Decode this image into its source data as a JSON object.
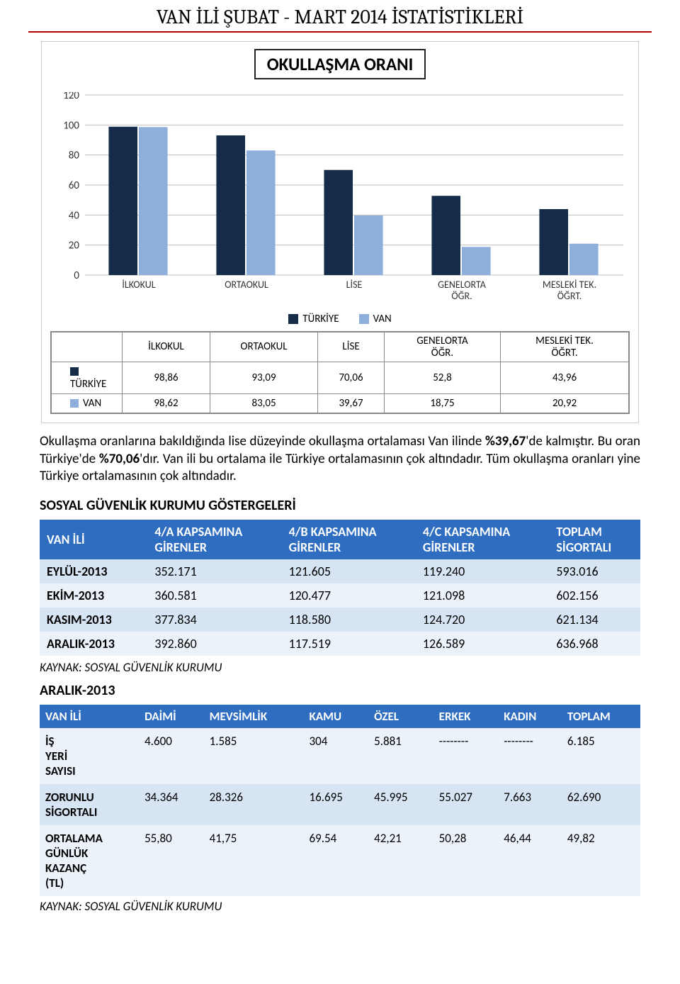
{
  "page_title": "VAN İLİ ŞUBAT - MART 2014 İSTATİSTİKLERİ",
  "chart": {
    "type": "bar",
    "title": "OKULLAŞMA ORANI",
    "title_fontsize": 25,
    "categories": [
      "İLKOKUL",
      "ORTAOKUL",
      "LİSE",
      "GENELORTA\nÖĞR.",
      "MESLEKİ TEK.\nÖĞRT."
    ],
    "series": [
      {
        "name": "TÜRKİYE",
        "color": "#142b4a",
        "values": [
          98.86,
          93.09,
          70.06,
          52.8,
          43.96
        ]
      },
      {
        "name": "VAN",
        "color": "#8eaedb",
        "values": [
          98.62,
          83.05,
          39.67,
          18.75,
          20.92
        ]
      }
    ],
    "ylim": [
      0,
      120
    ],
    "ytick_step": 20,
    "background_color": "#ffffff",
    "grid_color": "#bfbfbf",
    "label_fontsize": 14,
    "bar_group_width": 0.56
  },
  "data_table": {
    "rows": [
      [
        "98,86",
        "93,09",
        "70,06",
        "52,8",
        "43,96"
      ],
      [
        "98,62",
        "83,05",
        "39,67",
        "18,75",
        "20,92"
      ]
    ]
  },
  "body_text_html": "Okullaşma oranlarına bakıldığında lise düzeyinde okullaşma ortalaması Van ilinde <strong>%39,67</strong>'de kalmıştır. Bu oran Türkiye'de <strong>%70,06</strong>'dır. Van ili bu ortalama ile Türkiye ortalamasının çok altındadır. Tüm okullaşma oranları yine Türkiye ortalamasının çok altındadır.",
  "sgk_header": "SOSYAL GÜVENLİK KURUMU GÖSTERGELERİ",
  "sgk_table": {
    "header_bg": "#2e6dbf",
    "header_fg": "#ffffff",
    "row_bg": "#d6e4f3",
    "row_alt_bg": "#ecf2fa",
    "columns": [
      "VAN İLİ",
      "4/A KAPSAMINA GİRENLER",
      "4/B KAPSAMINA GİRENLER",
      "4/C KAPSAMINA GİRENLER",
      "TOPLAM SİGORTALI"
    ],
    "rows": [
      [
        "EYLÜL-2013",
        "352.171",
        "121.605",
        "119.240",
        "593.016"
      ],
      [
        "EKİM-2013",
        "360.581",
        "120.477",
        "121.098",
        "602.156"
      ],
      [
        "KASIM-2013",
        "377.834",
        "118.580",
        "124.720",
        "621.134"
      ],
      [
        "ARALIK-2013",
        "392.860",
        "117.519",
        "126.589",
        "636.968"
      ]
    ]
  },
  "sgk_source": "KAYNAK: SOSYAL GÜVENLİK KURUMU",
  "sub_header": "ARALIK-2013",
  "detail_table": {
    "columns": [
      "VAN İLİ",
      "DAİMİ",
      "MEVSİMLİK",
      "KAMU",
      "ÖZEL",
      "ERKEK",
      "KADIN",
      "TOPLAM"
    ],
    "rows": [
      [
        "İŞ YERİ SAYISI",
        "4.600",
        "1.585",
        "304",
        "5.881",
        "--------",
        "--------",
        "6.185"
      ],
      [
        "ZORUNLU SİGORTALI",
        "34.364",
        "28.326",
        "16.695",
        "45.995",
        "55.027",
        "7.663",
        "62.690"
      ],
      [
        "ORTALAMA GÜNLÜK KAZANÇ (TL)",
        "55,80",
        "41,75",
        "69.54",
        "42,21",
        "50,28",
        "46,44",
        "49,82"
      ]
    ]
  },
  "detail_source": "KAYNAK: SOSYAL GÜVENLİK KURUMU"
}
